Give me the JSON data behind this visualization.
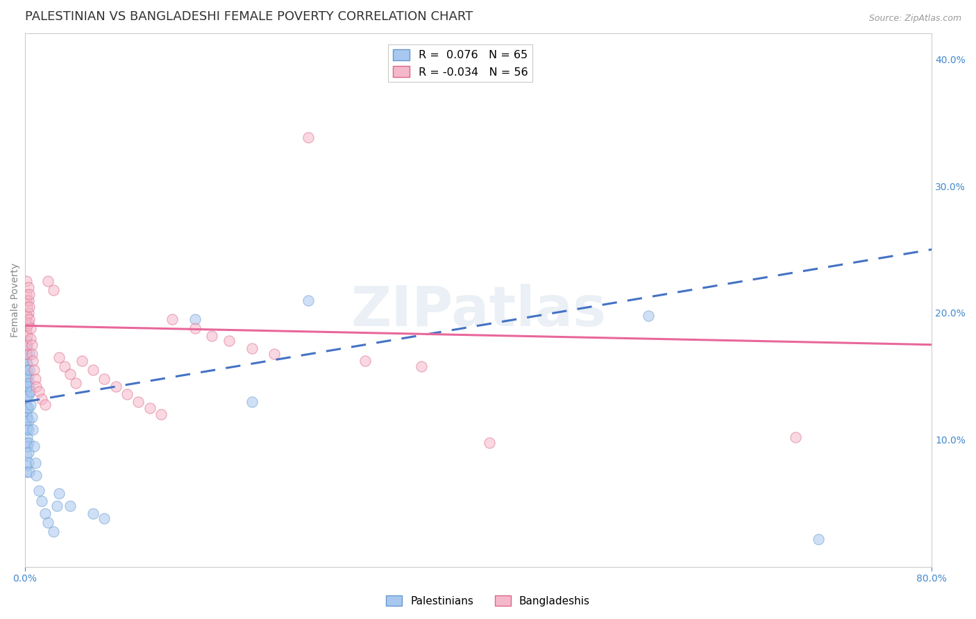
{
  "title": "PALESTINIAN VS BANGLADESHI FEMALE POVERTY CORRELATION CHART",
  "source": "Source: ZipAtlas.com",
  "ylabel": "Female Poverty",
  "xlim": [
    0.0,
    0.8
  ],
  "ylim": [
    0.0,
    0.42
  ],
  "xtick_positions": [
    0.0,
    0.8
  ],
  "xtick_labels": [
    "0.0%",
    "80.0%"
  ],
  "right_yticks": [
    0.1,
    0.2,
    0.3,
    0.4
  ],
  "right_ytick_labels": [
    "10.0%",
    "20.0%",
    "30.0%",
    "40.0%"
  ],
  "legend_entries": [
    {
      "label": "R =  0.076   N = 65",
      "color": "#a8c8f0"
    },
    {
      "label": "R = -0.034   N = 56",
      "color": "#f5b8ca"
    }
  ],
  "pal_color": "#a8c8f0",
  "ban_color": "#f5b8ca",
  "pal_line_color": "#4472c4",
  "ban_line_color": "#e8679a",
  "pal_edge_color": "#6699cc",
  "ban_edge_color": "#dd6688",
  "watermark": "ZIPatlas",
  "palestinians_x": [
    0.001,
    0.001,
    0.001,
    0.001,
    0.001,
    0.001,
    0.001,
    0.001,
    0.001,
    0.001,
    0.001,
    0.001,
    0.001,
    0.001,
    0.001,
    0.001,
    0.001,
    0.001,
    0.001,
    0.001,
    0.002,
    0.002,
    0.002,
    0.002,
    0.002,
    0.002,
    0.002,
    0.002,
    0.002,
    0.002,
    0.003,
    0.003,
    0.003,
    0.003,
    0.003,
    0.003,
    0.003,
    0.003,
    0.003,
    0.004,
    0.004,
    0.004,
    0.004,
    0.005,
    0.005,
    0.006,
    0.007,
    0.008,
    0.009,
    0.01,
    0.012,
    0.015,
    0.018,
    0.02,
    0.025,
    0.028,
    0.03,
    0.04,
    0.06,
    0.07,
    0.15,
    0.2,
    0.25,
    0.55,
    0.7
  ],
  "palestinians_y": [
    0.155,
    0.16,
    0.168,
    0.175,
    0.15,
    0.14,
    0.165,
    0.172,
    0.178,
    0.155,
    0.145,
    0.135,
    0.128,
    0.12,
    0.115,
    0.108,
    0.098,
    0.088,
    0.08,
    0.075,
    0.16,
    0.155,
    0.148,
    0.142,
    0.135,
    0.125,
    0.118,
    0.11,
    0.102,
    0.095,
    0.15,
    0.142,
    0.135,
    0.125,
    0.115,
    0.108,
    0.098,
    0.09,
    0.082,
    0.075,
    0.168,
    0.155,
    0.145,
    0.138,
    0.128,
    0.118,
    0.108,
    0.095,
    0.082,
    0.072,
    0.06,
    0.052,
    0.042,
    0.035,
    0.028,
    0.048,
    0.058,
    0.048,
    0.042,
    0.038,
    0.195,
    0.13,
    0.21,
    0.198,
    0.022
  ],
  "bangladeshis_x": [
    0.001,
    0.001,
    0.001,
    0.001,
    0.001,
    0.001,
    0.001,
    0.001,
    0.002,
    0.002,
    0.002,
    0.002,
    0.002,
    0.003,
    0.003,
    0.003,
    0.003,
    0.004,
    0.004,
    0.004,
    0.005,
    0.005,
    0.006,
    0.006,
    0.007,
    0.008,
    0.009,
    0.01,
    0.012,
    0.015,
    0.018,
    0.02,
    0.025,
    0.03,
    0.035,
    0.04,
    0.045,
    0.05,
    0.06,
    0.07,
    0.08,
    0.09,
    0.1,
    0.11,
    0.12,
    0.13,
    0.15,
    0.165,
    0.18,
    0.2,
    0.22,
    0.25,
    0.3,
    0.35,
    0.41,
    0.68
  ],
  "bangladeshis_y": [
    0.192,
    0.198,
    0.185,
    0.175,
    0.168,
    0.215,
    0.225,
    0.21,
    0.205,
    0.198,
    0.19,
    0.182,
    0.175,
    0.22,
    0.21,
    0.2,
    0.192,
    0.215,
    0.205,
    0.195,
    0.188,
    0.18,
    0.175,
    0.168,
    0.162,
    0.155,
    0.148,
    0.142,
    0.138,
    0.132,
    0.128,
    0.225,
    0.218,
    0.165,
    0.158,
    0.152,
    0.145,
    0.162,
    0.155,
    0.148,
    0.142,
    0.136,
    0.13,
    0.125,
    0.12,
    0.195,
    0.188,
    0.182,
    0.178,
    0.172,
    0.168,
    0.338,
    0.162,
    0.158,
    0.098,
    0.102
  ],
  "background_color": "#ffffff",
  "grid_color": "#cccccc",
  "title_fontsize": 13,
  "axis_label_fontsize": 10,
  "tick_fontsize": 10,
  "scatter_size": 120,
  "scatter_alpha": 0.55,
  "scatter_linewidth": 0.8
}
